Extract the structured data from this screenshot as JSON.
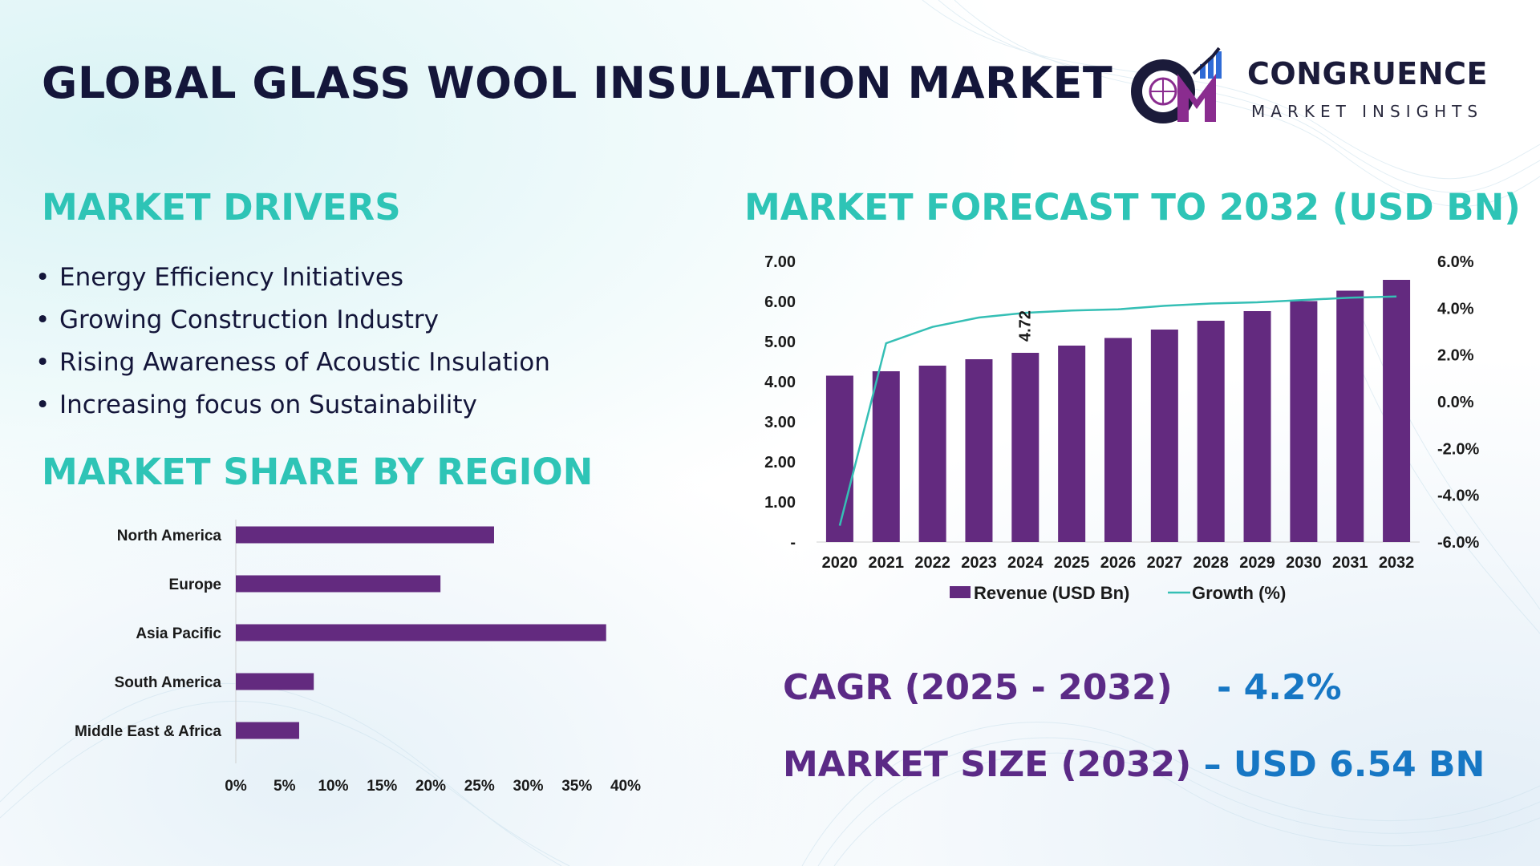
{
  "page": {
    "title": "GLOBAL GLASS WOOL INSULATION MARKET",
    "logo": {
      "name": "CONGRUENCE",
      "subtitle": "MARKET INSIGHTS",
      "colors": [
        "#1b1b3a",
        "#8a2c8f",
        "#2f6bd6"
      ]
    },
    "accent_color": "#2ec4b6",
    "bar_color": "#632a7f",
    "line_color": "#35bfb5"
  },
  "drivers": {
    "heading": "MARKET DRIVERS",
    "bullet": "•",
    "items": [
      "Energy Efficiency Initiatives",
      "Growing Construction Industry",
      "Rising Awareness of Acoustic Insulation",
      "Increasing focus on Sustainability"
    ]
  },
  "share_heading": "MARKET SHARE BY REGION",
  "forecast_heading": "MARKET FORECAST TO 2032 (USD BN)",
  "stats": {
    "cagr_label": "CAGR (2025 - 2032)",
    "cagr_value": "- 4.2%",
    "size_label": "MARKET SIZE (2032)",
    "size_value": "– USD 6.54 BN"
  },
  "chart_data": [
    {
      "type": "bar",
      "orientation": "horizontal",
      "title": "MARKET SHARE BY REGION",
      "categories": [
        "North America",
        "Europe",
        "Asia Pacific",
        "South America",
        "Middle East & Africa"
      ],
      "values": [
        26.5,
        21,
        38,
        8,
        6.5
      ],
      "xlim": [
        0,
        40
      ],
      "x_ticks": [
        "0%",
        "5%",
        "10%",
        "15%",
        "20%",
        "25%",
        "30%",
        "35%",
        "40%"
      ],
      "grid": false
    },
    {
      "type": "bar",
      "title": "MARKET FORECAST TO 2032 (USD BN)",
      "categories": [
        "2020",
        "2021",
        "2022",
        "2023",
        "2024",
        "2025",
        "2026",
        "2027",
        "2028",
        "2029",
        "2030",
        "2031",
        "2032"
      ],
      "series": [
        {
          "name": "Revenue (USD Bn)",
          "type": "bar",
          "axis": "left",
          "values": [
            4.15,
            4.26,
            4.4,
            4.56,
            4.72,
            4.9,
            5.09,
            5.3,
            5.52,
            5.76,
            6.01,
            6.27,
            6.54
          ]
        },
        {
          "name": "Growth (%)",
          "type": "line",
          "axis": "right",
          "values": [
            -5.3,
            2.5,
            3.2,
            3.6,
            3.8,
            3.9,
            3.95,
            4.1,
            4.2,
            4.25,
            4.35,
            4.45,
            4.5
          ]
        }
      ],
      "data_labels": [
        {
          "category": "2024",
          "text": "4.72"
        }
      ],
      "y_left": {
        "range": [
          0,
          7
        ],
        "ticks": [
          "-",
          "1.00",
          "2.00",
          "3.00",
          "4.00",
          "5.00",
          "6.00",
          "7.00"
        ]
      },
      "y_right": {
        "range": [
          -6,
          6
        ],
        "ticks": [
          "-6.0%",
          "-4.0%",
          "-2.0%",
          "0.0%",
          "2.0%",
          "4.0%",
          "6.0%"
        ]
      },
      "legend": "bottom",
      "grid": false
    }
  ]
}
